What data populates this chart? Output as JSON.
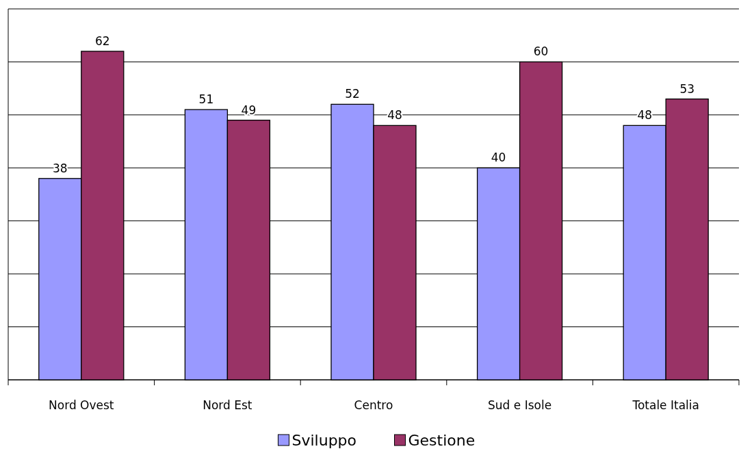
{
  "chart_data": {
    "type": "bar",
    "categories": [
      "Nord Ovest",
      "Nord Est",
      "Centro",
      "Sud e Isole",
      "Totale Italia"
    ],
    "series": [
      {
        "name": "Sviluppo",
        "color": "#9999ff",
        "values": [
          38,
          51,
          52,
          40,
          48
        ]
      },
      {
        "name": "Gestione",
        "color": "#993366",
        "values": [
          62,
          49,
          48,
          60,
          53
        ]
      }
    ],
    "ylim": [
      0,
      70
    ],
    "yticks": [
      {
        "value": 0,
        "label": null
      },
      {
        "value": 10,
        "label": null
      },
      {
        "value": 20,
        "label": null
      },
      {
        "value": 30,
        "label": null
      },
      {
        "value": 40,
        "label": null
      },
      {
        "value": 50,
        "label": null
      },
      {
        "value": 60,
        "label": null
      },
      {
        "value": 70,
        "label": null
      }
    ],
    "grid": "y",
    "tick_labels": "x",
    "data_labels": true,
    "legend": "bottom"
  }
}
